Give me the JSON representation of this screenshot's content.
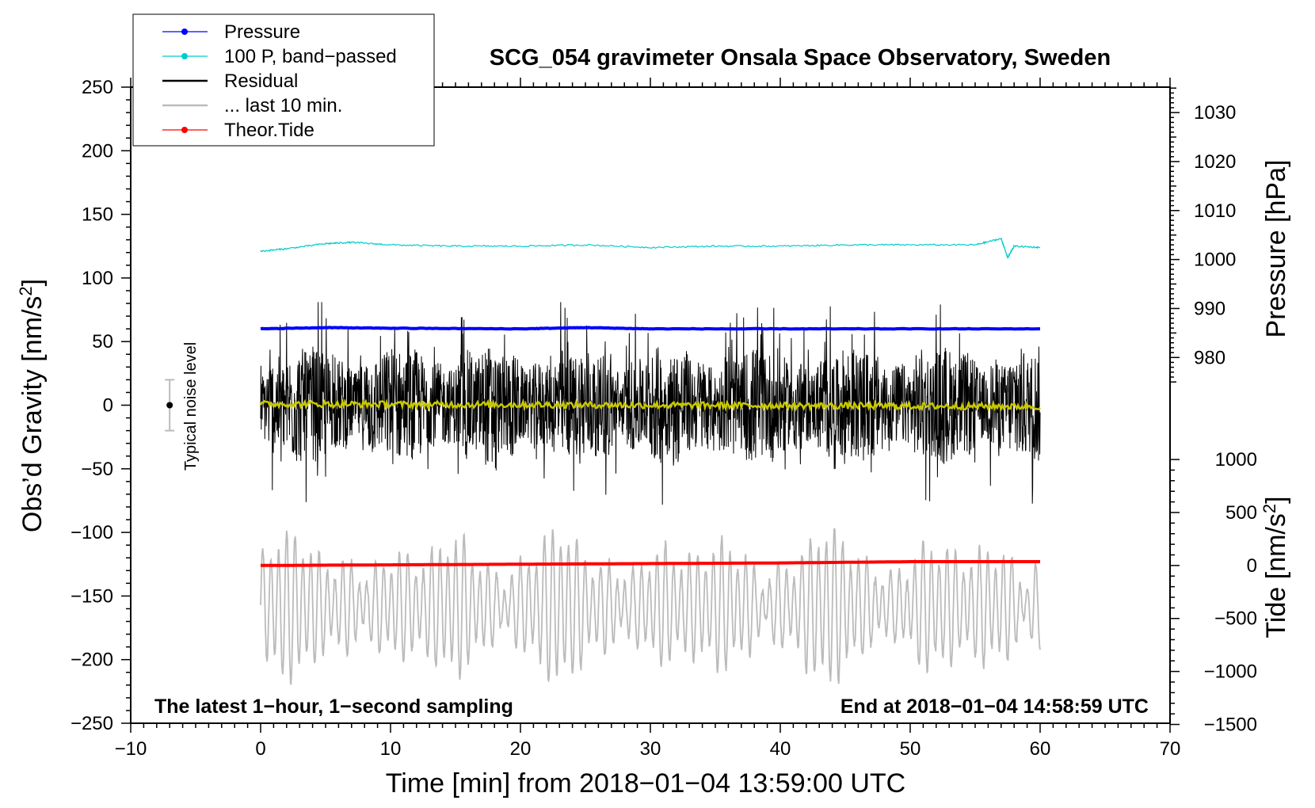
{
  "chart_data": {
    "type": "line",
    "title": "SCG_054 gravimeter Onsala Space Observatory, Sweden",
    "xlabel": "Time [min] from 2018−01−04 13:59:00 UTC",
    "ylabel_left": "Obs’d Gravity [nm/s",
    "ylabel_left_sup": "2",
    "ylabel_left_end": "]",
    "ylabel_right_pressure": "Pressure [hPa]",
    "ylabel_right_tide": "Tide [nm/s",
    "ylabel_right_tide_sup": "2",
    "ylabel_right_tide_end": "]",
    "xlim": [
      -10,
      70
    ],
    "ylim": [
      -250,
      250
    ],
    "x_ticks": [
      -10,
      0,
      10,
      20,
      30,
      40,
      50,
      60,
      70
    ],
    "x_tick_labels": [
      "−10",
      "0",
      "10",
      "20",
      "30",
      "40",
      "50",
      "60",
      "70"
    ],
    "y_ticks": [
      250,
      200,
      150,
      100,
      50,
      0,
      -50,
      -100,
      -150,
      -200,
      -250
    ],
    "y_tick_labels": [
      "250",
      "200",
      "150",
      "100",
      "50",
      "0",
      "−50",
      "−100",
      "−150",
      "−200",
      "−250"
    ],
    "pressure_axis": {
      "ticks": [
        1030,
        1020,
        1010,
        1000,
        990,
        980
      ],
      "tick_labels": [
        "1030",
        "1020",
        "1010",
        "1000",
        "990",
        "980"
      ],
      "gravity_equiv_of_1030": 230,
      "gravity_per_hpa": -3.85
    },
    "tide_axis": {
      "ticks": [
        1000,
        500,
        0,
        -500,
        -1000,
        -1500
      ],
      "tick_labels": [
        "1000",
        "500",
        "0",
        "−500",
        "−1000",
        "−1500"
      ],
      "gravity_equiv_of_0": -126,
      "gravity_per_unit": 0.0833
    },
    "legend": {
      "placement": "top-left",
      "entries": [
        {
          "label": "Pressure",
          "color": "#0000ff",
          "marker": true
        },
        {
          "label": "100 P, band−passed",
          "color": "#00cccc",
          "marker": true
        },
        {
          "label": "Residual",
          "color": "#000000",
          "marker": false
        },
        {
          "label": "... last 10 min.",
          "color": "#bbbbbb",
          "marker": false
        },
        {
          "label": "Theor.Tide",
          "color": "#ff0000",
          "marker": true
        }
      ]
    },
    "series": [
      {
        "name": "Pressure",
        "color": "#0000ff",
        "x": [
          0,
          5,
          10,
          20,
          25,
          30,
          40,
          50,
          60
        ],
        "y": [
          60,
          61,
          60.5,
          60,
          61,
          60,
          60,
          60,
          60
        ]
      },
      {
        "name": "100 P, band−passed",
        "color": "#00cccc",
        "x": [
          0,
          2,
          5,
          7,
          10,
          15,
          20,
          25,
          30,
          35,
          40,
          45,
          50,
          55,
          57,
          57.5,
          58,
          60
        ],
        "y": [
          121,
          123,
          127,
          128,
          126,
          125,
          125,
          126,
          124,
          125,
          125,
          126,
          126,
          126,
          131,
          116,
          125,
          124
        ]
      },
      {
        "name": "Residual",
        "color": "#000000",
        "x_range": [
          0,
          60
        ],
        "amplitude_range": [
          -85,
          81
        ]
      },
      {
        "name": "Residual (smoothed)",
        "color": "#c8c800",
        "x": [
          0,
          60
        ],
        "y": [
          1,
          -1
        ]
      },
      {
        "name": "... last 10 min.",
        "color": "#bbbbbb",
        "x_range": [
          0,
          60
        ],
        "y_range": [
          -234,
          -83
        ]
      },
      {
        "name": "Theor.Tide",
        "color": "#ff0000",
        "x": [
          0,
          10,
          20,
          30,
          40,
          50,
          60
        ],
        "y": [
          -126,
          -125.5,
          -125,
          -124.5,
          -124,
          -123,
          -123
        ]
      }
    ],
    "noise_level": {
      "label": "Typical noise level",
      "x": -7,
      "y": 0,
      "ymin": -20,
      "ymax": 20
    },
    "annotations": {
      "bottom_left": "The latest 1−hour, 1−second sampling",
      "bottom_right": "End at 2018−01−04 14:58:59 UTC"
    }
  }
}
